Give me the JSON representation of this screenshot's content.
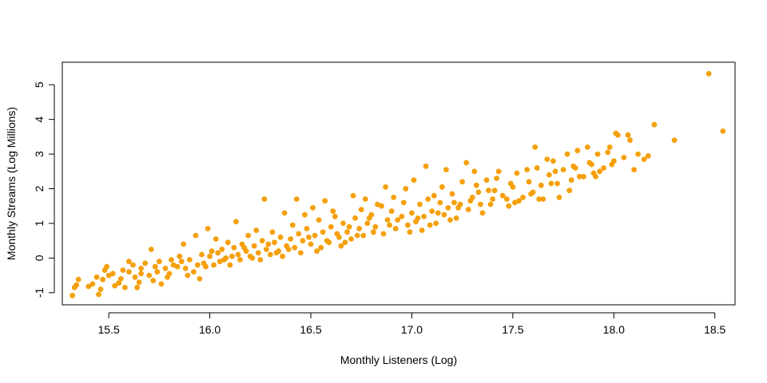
{
  "chart_data": {
    "type": "scatter",
    "title": "",
    "xlabel": "Monthly Listeners (Log)",
    "ylabel": "Monthly Streams (Log Millions)",
    "xlim": [
      15.27,
      18.6
    ],
    "ylim": [
      -1.35,
      5.65
    ],
    "x_ticks": [
      "15.5",
      "16.0",
      "16.5",
      "17.0",
      "17.5",
      "18.0",
      "18.5"
    ],
    "y_ticks": [
      "-1",
      "0",
      "1",
      "2",
      "3",
      "4",
      "5"
    ],
    "grid": false,
    "legend": "none",
    "point_color": "#f5a00a",
    "points": [
      [
        15.32,
        -1.08
      ],
      [
        15.34,
        -0.78
      ],
      [
        15.35,
        -0.62
      ],
      [
        15.33,
        -0.85
      ],
      [
        15.4,
        -0.82
      ],
      [
        15.42,
        -0.75
      ],
      [
        15.44,
        -0.55
      ],
      [
        15.45,
        -1.05
      ],
      [
        15.46,
        -0.9
      ],
      [
        15.47,
        -0.62
      ],
      [
        15.48,
        -0.35
      ],
      [
        15.5,
        -0.5
      ],
      [
        15.52,
        -0.45
      ],
      [
        15.53,
        -0.8
      ],
      [
        15.55,
        -0.72
      ],
      [
        15.56,
        -0.6
      ],
      [
        15.58,
        -0.85
      ],
      [
        15.6,
        -0.4
      ],
      [
        15.62,
        -0.2
      ],
      [
        15.63,
        -0.55
      ],
      [
        15.65,
        -0.7
      ],
      [
        15.66,
        -0.3
      ],
      [
        15.68,
        -0.15
      ],
      [
        15.7,
        -0.5
      ],
      [
        15.72,
        -0.65
      ],
      [
        15.74,
        -0.4
      ],
      [
        15.75,
        -0.1
      ],
      [
        15.76,
        -0.75
      ],
      [
        15.78,
        -0.3
      ],
      [
        15.8,
        -0.45
      ],
      [
        15.82,
        -0.2
      ],
      [
        15.84,
        -0.25
      ],
      [
        15.85,
        0.05
      ],
      [
        15.86,
        -0.1
      ],
      [
        15.88,
        -0.3
      ],
      [
        15.9,
        -0.05
      ],
      [
        15.92,
        -0.4
      ],
      [
        15.94,
        -0.2
      ],
      [
        15.95,
        -0.6
      ],
      [
        15.96,
        0.1
      ],
      [
        15.98,
        -0.25
      ],
      [
        16.0,
        0.05
      ],
      [
        16.02,
        -0.2
      ],
      [
        16.04,
        0.15
      ],
      [
        16.05,
        -0.1
      ],
      [
        16.06,
        0.25
      ],
      [
        16.08,
        0.0
      ],
      [
        16.1,
        -0.2
      ],
      [
        16.12,
        0.3
      ],
      [
        16.14,
        0.1
      ],
      [
        16.15,
        -0.05
      ],
      [
        16.16,
        0.4
      ],
      [
        16.18,
        0.2
      ],
      [
        16.2,
        0.05
      ],
      [
        16.22,
        0.35
      ],
      [
        16.24,
        0.15
      ],
      [
        16.25,
        -0.05
      ],
      [
        16.26,
        0.5
      ],
      [
        16.28,
        0.25
      ],
      [
        16.3,
        0.1
      ],
      [
        16.32,
        0.45
      ],
      [
        16.34,
        0.2
      ],
      [
        16.35,
        0.6
      ],
      [
        16.36,
        0.05
      ],
      [
        16.38,
        0.35
      ],
      [
        16.4,
        0.55
      ],
      [
        16.42,
        0.3
      ],
      [
        16.44,
        0.7
      ],
      [
        16.45,
        0.15
      ],
      [
        16.46,
        0.5
      ],
      [
        16.48,
        0.85
      ],
      [
        16.5,
        0.4
      ],
      [
        16.52,
        0.65
      ],
      [
        16.54,
        1.1
      ],
      [
        16.55,
        0.3
      ],
      [
        16.56,
        0.75
      ],
      [
        16.58,
        0.5
      ],
      [
        16.6,
        0.9
      ],
      [
        16.62,
        1.2
      ],
      [
        16.64,
        0.6
      ],
      [
        16.65,
        0.35
      ],
      [
        16.66,
        1.0
      ],
      [
        16.68,
        0.75
      ],
      [
        16.7,
        0.55
      ],
      [
        16.72,
        1.15
      ],
      [
        16.74,
        0.85
      ],
      [
        16.75,
        1.4
      ],
      [
        16.76,
        0.65
      ],
      [
        16.78,
        1.0
      ],
      [
        16.8,
        1.25
      ],
      [
        16.82,
        0.9
      ],
      [
        16.85,
        1.5
      ],
      [
        16.86,
        0.7
      ],
      [
        16.88,
        1.1
      ],
      [
        16.9,
        1.35
      ],
      [
        16.92,
        0.85
      ],
      [
        16.95,
        1.2
      ],
      [
        16.96,
        1.6
      ],
      [
        16.98,
        0.95
      ],
      [
        17.0,
        1.3
      ],
      [
        17.02,
        1.05
      ],
      [
        17.04,
        1.55
      ],
      [
        17.05,
        0.8
      ],
      [
        17.06,
        1.2
      ],
      [
        17.08,
        1.7
      ],
      [
        17.1,
        1.35
      ],
      [
        17.12,
        1.0
      ],
      [
        17.14,
        1.6
      ],
      [
        17.15,
        2.05
      ],
      [
        17.16,
        1.25
      ],
      [
        17.18,
        1.45
      ],
      [
        17.2,
        1.85
      ],
      [
        17.22,
        1.15
      ],
      [
        17.24,
        1.55
      ],
      [
        17.25,
        2.2
      ],
      [
        17.28,
        1.4
      ],
      [
        17.3,
        1.75
      ],
      [
        17.32,
        2.1
      ],
      [
        17.34,
        1.55
      ],
      [
        17.35,
        1.3
      ],
      [
        17.38,
        1.95
      ],
      [
        17.4,
        1.7
      ],
      [
        17.42,
        2.3
      ],
      [
        17.45,
        1.8
      ],
      [
        17.48,
        1.5
      ],
      [
        17.5,
        2.05
      ],
      [
        17.52,
        2.45
      ],
      [
        17.55,
        1.75
      ],
      [
        17.58,
        2.2
      ],
      [
        17.6,
        1.9
      ],
      [
        17.62,
        2.6
      ],
      [
        17.64,
        2.1
      ],
      [
        17.65,
        1.7
      ],
      [
        17.68,
        2.4
      ],
      [
        17.7,
        2.8
      ],
      [
        17.72,
        2.15
      ],
      [
        17.75,
        2.55
      ],
      [
        17.78,
        1.95
      ],
      [
        17.8,
        2.65
      ],
      [
        17.82,
        3.1
      ],
      [
        17.85,
        2.35
      ],
      [
        17.88,
        2.75
      ],
      [
        17.9,
        2.45
      ],
      [
        17.92,
        3.0
      ],
      [
        17.95,
        2.6
      ],
      [
        17.98,
        3.2
      ],
      [
        18.0,
        2.8
      ],
      [
        18.02,
        3.55
      ],
      [
        18.05,
        2.9
      ],
      [
        18.08,
        3.4
      ],
      [
        18.12,
        3.0
      ],
      [
        18.15,
        2.85
      ],
      [
        18.2,
        3.85
      ],
      [
        18.3,
        3.4
      ],
      [
        18.47,
        5.32
      ],
      [
        18.54,
        3.66
      ],
      [
        15.49,
        -0.25
      ],
      [
        15.57,
        -0.35
      ],
      [
        15.64,
        -0.85
      ],
      [
        15.71,
        0.25
      ],
      [
        15.79,
        -0.55
      ],
      [
        15.87,
        0.4
      ],
      [
        15.93,
        0.65
      ],
      [
        15.99,
        0.85
      ],
      [
        16.03,
        0.55
      ],
      [
        16.09,
        0.45
      ],
      [
        16.13,
        1.05
      ],
      [
        16.19,
        0.65
      ],
      [
        16.23,
        0.8
      ],
      [
        16.27,
        1.7
      ],
      [
        16.31,
        0.75
      ],
      [
        16.37,
        1.3
      ],
      [
        16.41,
        0.95
      ],
      [
        16.43,
        1.7
      ],
      [
        16.47,
        1.25
      ],
      [
        16.51,
        1.45
      ],
      [
        16.57,
        1.65
      ],
      [
        16.61,
        1.35
      ],
      [
        16.67,
        0.45
      ],
      [
        16.71,
        1.8
      ],
      [
        16.77,
        1.7
      ],
      [
        16.83,
        1.55
      ],
      [
        16.87,
        2.05
      ],
      [
        16.91,
        1.75
      ],
      [
        16.97,
        2.0
      ],
      [
        17.01,
        2.25
      ],
      [
        17.07,
        2.65
      ],
      [
        17.11,
        1.8
      ],
      [
        17.17,
        2.55
      ],
      [
        17.21,
        1.6
      ],
      [
        17.27,
        2.75
      ],
      [
        17.31,
        2.5
      ],
      [
        17.37,
        2.25
      ],
      [
        17.43,
        2.5
      ],
      [
        17.47,
        1.7
      ],
      [
        17.53,
        1.65
      ],
      [
        17.57,
        2.55
      ],
      [
        17.61,
        3.2
      ],
      [
        17.67,
        2.85
      ],
      [
        17.73,
        1.75
      ],
      [
        17.77,
        3.0
      ],
      [
        17.83,
        2.35
      ],
      [
        17.87,
        3.2
      ],
      [
        17.91,
        2.35
      ],
      [
        17.97,
        3.05
      ],
      [
        18.01,
        3.6
      ],
      [
        18.07,
        3.55
      ],
      [
        18.1,
        2.55
      ],
      [
        18.17,
        2.95
      ],
      [
        15.6,
        -0.1
      ],
      [
        15.66,
        -0.45
      ],
      [
        15.73,
        -0.25
      ],
      [
        15.81,
        -0.05
      ],
      [
        15.89,
        -0.5
      ],
      [
        15.97,
        -0.15
      ],
      [
        16.01,
        0.2
      ],
      [
        16.07,
        -0.05
      ],
      [
        16.11,
        0.05
      ],
      [
        16.17,
        0.3
      ],
      [
        16.21,
        0.0
      ],
      [
        16.29,
        0.4
      ],
      [
        16.33,
        0.15
      ],
      [
        16.39,
        0.25
      ],
      [
        16.49,
        0.6
      ],
      [
        16.53,
        0.2
      ],
      [
        16.59,
        0.45
      ],
      [
        16.63,
        0.7
      ],
      [
        16.69,
        0.9
      ],
      [
        16.73,
        0.65
      ],
      [
        16.79,
        1.15
      ],
      [
        16.81,
        0.75
      ],
      [
        16.89,
        0.95
      ],
      [
        16.93,
        1.1
      ],
      [
        16.99,
        0.75
      ],
      [
        17.03,
        1.15
      ],
      [
        17.09,
        0.95
      ],
      [
        17.13,
        1.3
      ],
      [
        17.19,
        1.1
      ],
      [
        17.23,
        1.45
      ],
      [
        17.29,
        1.65
      ],
      [
        17.33,
        1.9
      ],
      [
        17.39,
        1.55
      ],
      [
        17.41,
        1.95
      ],
      [
        17.49,
        2.15
      ],
      [
        17.51,
        1.6
      ],
      [
        17.59,
        1.85
      ],
      [
        17.63,
        1.7
      ],
      [
        17.69,
        2.15
      ],
      [
        17.71,
        2.5
      ],
      [
        17.79,
        2.25
      ],
      [
        17.81,
        2.6
      ],
      [
        17.89,
        2.7
      ],
      [
        17.93,
        2.5
      ],
      [
        17.99,
        2.7
      ]
    ]
  }
}
